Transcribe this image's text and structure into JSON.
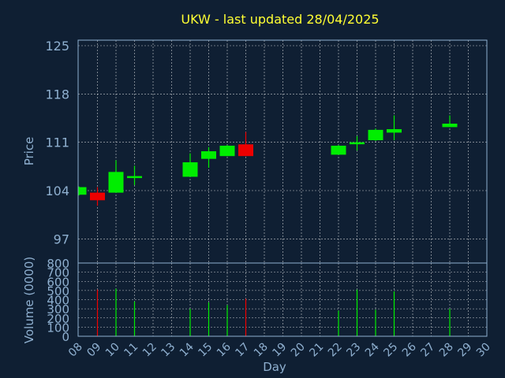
{
  "chart_data": {
    "type": "candlestick",
    "title": "UKW - last updated 28/04/2025",
    "xlabel": "Day",
    "colors": {
      "up": "#00ee00",
      "down": "#ee0000",
      "background": "#0f1f33",
      "grid": "#ffffff",
      "axis_text": "#8fb0d0",
      "title": "#ffff33"
    },
    "x_ticks": [
      "08",
      "09",
      "10",
      "11",
      "12",
      "13",
      "14",
      "15",
      "16",
      "17",
      "18",
      "19",
      "20",
      "21",
      "22",
      "23",
      "24",
      "25",
      "26",
      "27",
      "28",
      "29",
      "30"
    ],
    "price_panel": {
      "ylabel": "Price",
      "ylim": [
        93.5,
        125.8
      ],
      "y_ticks": [
        125,
        118,
        111,
        104,
        97
      ]
    },
    "volume_panel": {
      "ylabel": "Volume (0000)",
      "ylim": [
        0,
        800
      ],
      "y_ticks": [
        800,
        700,
        600,
        500,
        400,
        300,
        200,
        100,
        0
      ]
    },
    "candles": [
      {
        "day": "08",
        "open": 103.4,
        "close": 104.5,
        "high": 104.6,
        "low": 103.3,
        "volume": 0
      },
      {
        "day": "09",
        "open": 103.7,
        "close": 102.6,
        "high": 104.5,
        "low": 101.8,
        "volume": 510
      },
      {
        "day": "10",
        "open": 103.7,
        "close": 106.7,
        "high": 108.4,
        "low": 103.7,
        "volume": 520
      },
      {
        "day": "11",
        "open": 105.9,
        "close": 106.1,
        "high": 107.6,
        "low": 104.8,
        "volume": 380
      },
      {
        "day": "14",
        "open": 106.0,
        "close": 108.1,
        "high": 109.4,
        "low": 106.0,
        "volume": 300
      },
      {
        "day": "15",
        "open": 108.6,
        "close": 109.7,
        "high": 110.3,
        "low": 107.3,
        "volume": 370
      },
      {
        "day": "16",
        "open": 109.0,
        "close": 110.5,
        "high": 110.6,
        "low": 109.0,
        "volume": 340
      },
      {
        "day": "17",
        "open": 110.7,
        "close": 109.0,
        "high": 112.5,
        "low": 109.0,
        "volume": 410
      },
      {
        "day": "22",
        "open": 109.2,
        "close": 110.5,
        "high": 110.6,
        "low": 109.2,
        "volume": 280
      },
      {
        "day": "23",
        "open": 110.8,
        "close": 111.0,
        "high": 111.9,
        "low": 109.8,
        "volume": 510
      },
      {
        "day": "24",
        "open": 111.3,
        "close": 112.8,
        "high": 113.0,
        "low": 111.2,
        "volume": 290
      },
      {
        "day": "25",
        "open": 112.4,
        "close": 112.9,
        "high": 114.9,
        "low": 111.3,
        "volume": 490
      },
      {
        "day": "28",
        "open": 113.2,
        "close": 113.7,
        "high": 114.9,
        "low": 113.2,
        "volume": 300
      }
    ]
  }
}
